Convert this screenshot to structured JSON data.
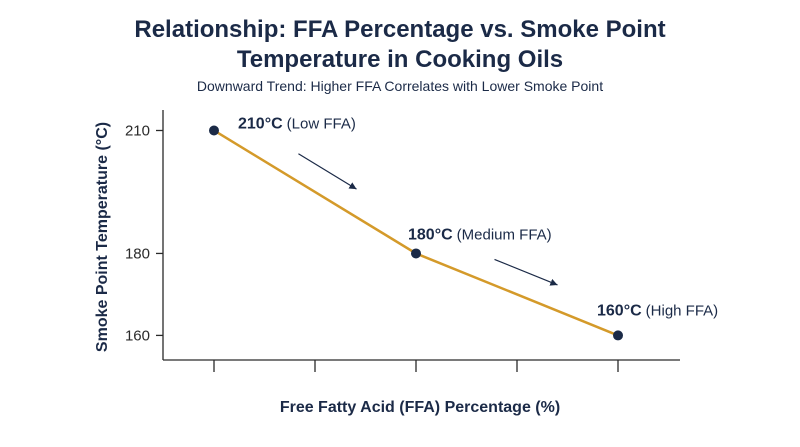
{
  "chart_data": {
    "type": "line",
    "title_line1": "Relationship: FFA Percentage vs. Smoke Point",
    "title_line2": "Temperature in Cooking Oils",
    "subtitle": "Downward Trend: Higher FFA Correlates with Lower Smoke Point",
    "xlabel": "Free Fatty Acid (FFA) Percentage (%)",
    "ylabel": "Smoke Point Temperature (°C)",
    "x_tick_count": 5,
    "ylim": [
      154,
      215
    ],
    "yticks": [
      160,
      180,
      210
    ],
    "grid": false,
    "points": [
      {
        "category": "Low FFA",
        "y": 210,
        "label_value": "210°C",
        "label_text": "(Low FFA)"
      },
      {
        "category": "Medium FFA",
        "y": 180,
        "label_value": "180°C",
        "label_text": "(Medium FFA)"
      },
      {
        "category": "High FFA",
        "y": 160,
        "label_value": "160°C",
        "label_text": "(High FFA)"
      }
    ],
    "colors": {
      "line": "#d49a2a",
      "points": "#1b2a47",
      "text": "#1b2a47",
      "axis": "#2a2a2a"
    }
  }
}
